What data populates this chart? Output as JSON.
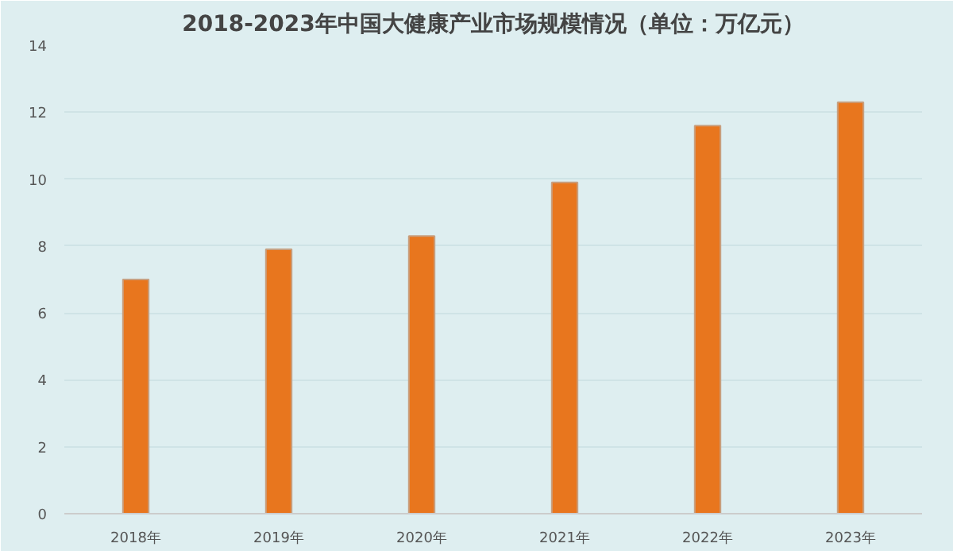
{
  "chart_data": {
    "type": "bar",
    "title": "2018-2023年中国大健康产业市场规模情况（单位：万亿元）",
    "categories": [
      "2018年",
      "2019年",
      "2020年",
      "2021年",
      "2022年",
      "2023年"
    ],
    "values": [
      7.0,
      7.9,
      8.3,
      9.9,
      11.6,
      12.3
    ],
    "color": "#e8761e",
    "ylim": [
      0,
      14
    ],
    "yticks": [
      0,
      2,
      4,
      6,
      8,
      10,
      12,
      14
    ],
    "grid": "y"
  }
}
